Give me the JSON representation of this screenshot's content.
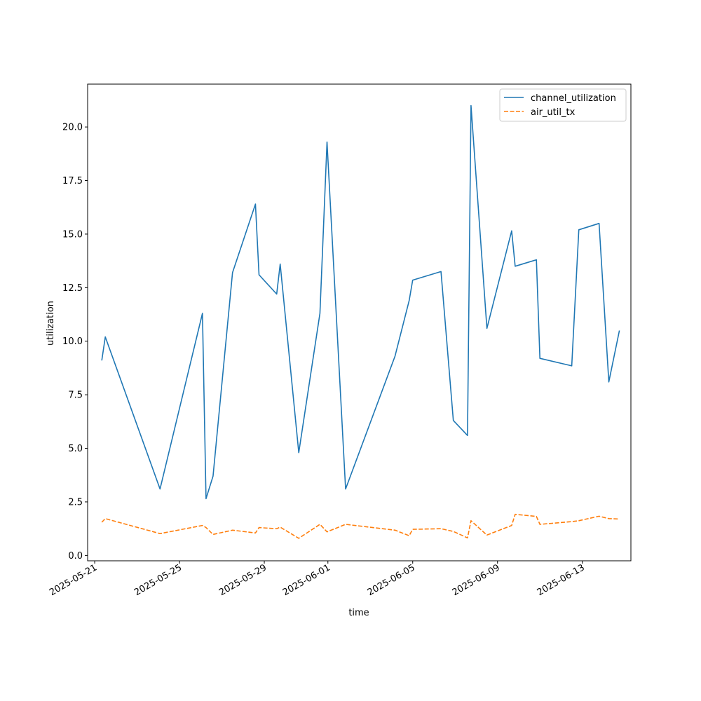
{
  "chart_data": {
    "type": "line",
    "title": "",
    "xlabel": "time",
    "ylabel": "utilization",
    "x_axis_type": "date",
    "xlim": [
      "2025-05-20T16:00",
      "2025-06-15T07:00"
    ],
    "ylim": [
      -0.25,
      22.0
    ],
    "x_ticks": [
      "2025-05-21",
      "2025-05-25",
      "2025-05-29",
      "2025-06-01",
      "2025-06-05",
      "2025-06-09",
      "2025-06-13"
    ],
    "y_ticks": [
      "0.0",
      "2.5",
      "5.0",
      "7.5",
      "10.0",
      "12.5",
      "15.0",
      "17.5",
      "20.0"
    ],
    "grid": false,
    "legend_position": "upper-right",
    "series": [
      {
        "name": "channel_utilization",
        "color": "#1f77b4",
        "dash": "solid",
        "points": [
          [
            "2025-05-21T08:00",
            9.1
          ],
          [
            "2025-05-21T12:00",
            10.2
          ],
          [
            "2025-05-24T02:00",
            3.1
          ],
          [
            "2025-05-26T02:00",
            11.3
          ],
          [
            "2025-05-26T06:00",
            2.65
          ],
          [
            "2025-05-26T14:00",
            3.7
          ],
          [
            "2025-05-27T12:00",
            13.2
          ],
          [
            "2025-05-28T14:00",
            16.4
          ],
          [
            "2025-05-28T18:00",
            13.1
          ],
          [
            "2025-05-29T14:00",
            12.2
          ],
          [
            "2025-05-29T18:00",
            13.6
          ],
          [
            "2025-05-30T15:00",
            4.8
          ],
          [
            "2025-05-31T15:00",
            11.3
          ],
          [
            "2025-05-31T23:00",
            19.3
          ],
          [
            "2025-06-01T20:00",
            3.1
          ],
          [
            "2025-06-04T04:00",
            9.3
          ],
          [
            "2025-06-04T20:00",
            11.9
          ],
          [
            "2025-06-05T00:00",
            12.85
          ],
          [
            "2025-06-06T08:00",
            13.25
          ],
          [
            "2025-06-06T22:00",
            6.3
          ],
          [
            "2025-06-07T14:00",
            5.6
          ],
          [
            "2025-06-07T18:00",
            21.0
          ],
          [
            "2025-06-08T12:00",
            10.6
          ],
          [
            "2025-06-09T16:00",
            15.15
          ],
          [
            "2025-06-09T20:00",
            13.5
          ],
          [
            "2025-06-10T20:00",
            13.8
          ],
          [
            "2025-06-11T00:00",
            9.2
          ],
          [
            "2025-06-12T12:00",
            8.85
          ],
          [
            "2025-06-12T20:00",
            15.2
          ],
          [
            "2025-06-13T19:00",
            15.5
          ],
          [
            "2025-06-14T06:00",
            8.1
          ],
          [
            "2025-06-14T18:00",
            10.5
          ]
        ]
      },
      {
        "name": "air_util_tx",
        "color": "#ff7f0e",
        "dash": "dashed",
        "points": [
          [
            "2025-05-21T08:00",
            1.55
          ],
          [
            "2025-05-21T12:00",
            1.72
          ],
          [
            "2025-05-24T02:00",
            1.02
          ],
          [
            "2025-05-26T02:00",
            1.4
          ],
          [
            "2025-05-26T06:00",
            1.3
          ],
          [
            "2025-05-26T14:00",
            0.98
          ],
          [
            "2025-05-27T12:00",
            1.18
          ],
          [
            "2025-05-28T14:00",
            1.05
          ],
          [
            "2025-05-28T18:00",
            1.3
          ],
          [
            "2025-05-29T14:00",
            1.25
          ],
          [
            "2025-05-29T18:00",
            1.32
          ],
          [
            "2025-05-30T15:00",
            0.8
          ],
          [
            "2025-05-31T15:00",
            1.45
          ],
          [
            "2025-05-31T23:00",
            1.1
          ],
          [
            "2025-06-01T20:00",
            1.45
          ],
          [
            "2025-06-04T04:00",
            1.18
          ],
          [
            "2025-06-04T20:00",
            0.92
          ],
          [
            "2025-06-05T00:00",
            1.22
          ],
          [
            "2025-06-06T08:00",
            1.25
          ],
          [
            "2025-06-06T22:00",
            1.12
          ],
          [
            "2025-06-07T14:00",
            0.82
          ],
          [
            "2025-06-07T18:00",
            1.62
          ],
          [
            "2025-06-08T12:00",
            0.95
          ],
          [
            "2025-06-09T16:00",
            1.4
          ],
          [
            "2025-06-09T20:00",
            1.92
          ],
          [
            "2025-06-10T20:00",
            1.82
          ],
          [
            "2025-06-11T00:00",
            1.45
          ],
          [
            "2025-06-12T12:00",
            1.58
          ],
          [
            "2025-06-12T20:00",
            1.62
          ],
          [
            "2025-06-13T19:00",
            1.83
          ],
          [
            "2025-06-14T06:00",
            1.72
          ],
          [
            "2025-06-14T18:00",
            1.7
          ]
        ]
      }
    ]
  }
}
